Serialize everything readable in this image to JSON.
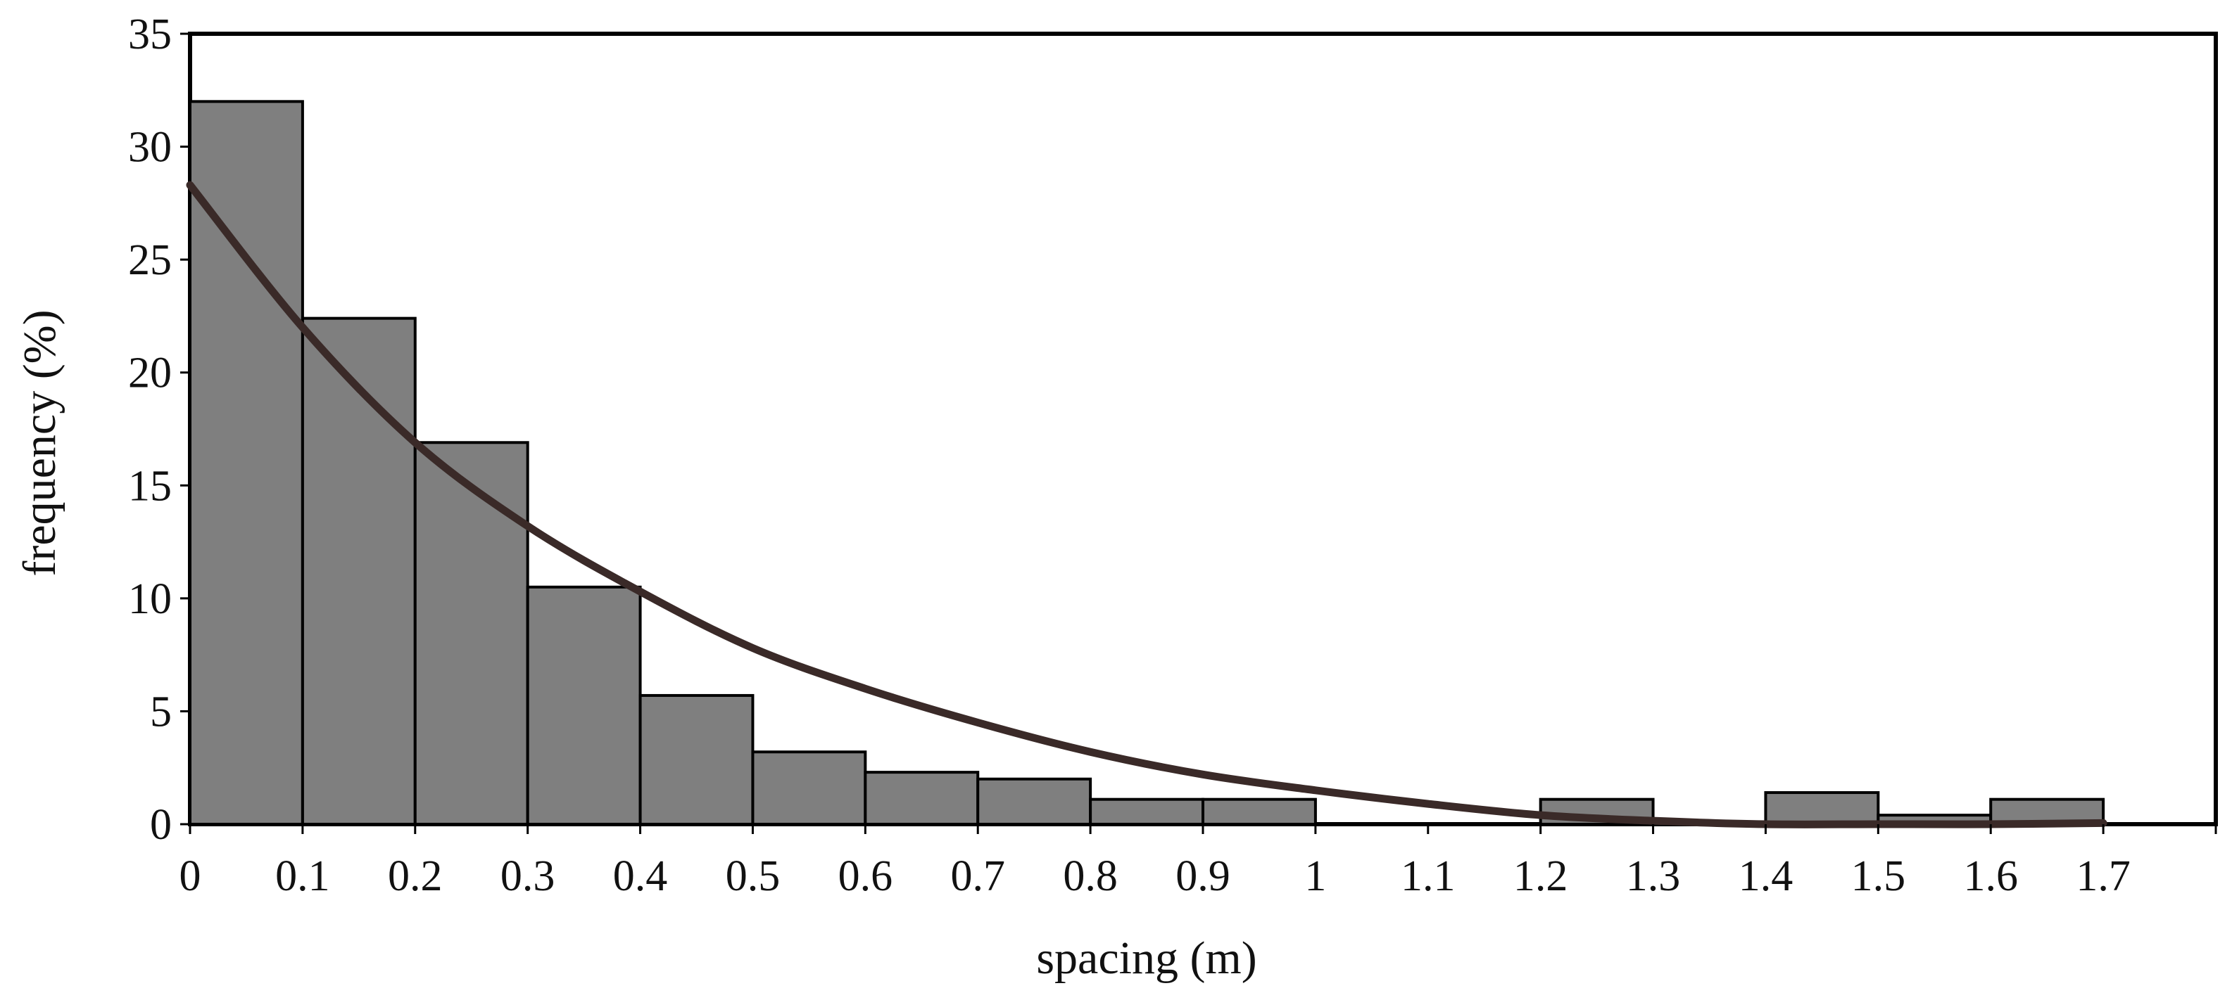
{
  "chart_data": {
    "type": "bar",
    "title": "",
    "xlabel": "spacing (m)",
    "ylabel": "frequency (%)",
    "ylim": [
      0,
      35
    ],
    "xlim": [
      0,
      1.8
    ],
    "bin_width": 0.1,
    "y_ticks": [
      "0",
      "5",
      "10",
      "15",
      "20",
      "25",
      "30",
      "35"
    ],
    "x_ticks": [
      "0",
      "0.1",
      "0.2",
      "0.3",
      "0.4",
      "0.5",
      "0.6",
      "0.7",
      "0.8",
      "0.9",
      "1",
      "1.1",
      "1.2",
      "1.3",
      "1.4",
      "1.5",
      "1.6",
      "1.7"
    ],
    "bins": [
      {
        "x0": 0.0,
        "x1": 0.1,
        "value": 32.0
      },
      {
        "x0": 0.1,
        "x1": 0.2,
        "value": 22.4
      },
      {
        "x0": 0.2,
        "x1": 0.3,
        "value": 16.9
      },
      {
        "x0": 0.3,
        "x1": 0.4,
        "value": 10.5
      },
      {
        "x0": 0.4,
        "x1": 0.5,
        "value": 5.7
      },
      {
        "x0": 0.5,
        "x1": 0.6,
        "value": 3.2
      },
      {
        "x0": 0.6,
        "x1": 0.7,
        "value": 2.3
      },
      {
        "x0": 0.7,
        "x1": 0.8,
        "value": 2.0
      },
      {
        "x0": 0.8,
        "x1": 0.9,
        "value": 1.1
      },
      {
        "x0": 0.9,
        "x1": 1.0,
        "value": 1.1
      },
      {
        "x0": 1.2,
        "x1": 1.3,
        "value": 1.1
      },
      {
        "x0": 1.4,
        "x1": 1.5,
        "value": 1.4
      },
      {
        "x0": 1.5,
        "x1": 1.6,
        "value": 0.4
      },
      {
        "x0": 1.6,
        "x1": 1.7,
        "value": 1.1
      }
    ],
    "fit_curve": {
      "x": [
        0.0,
        0.1,
        0.2,
        0.3,
        0.4,
        0.5,
        0.6,
        0.7,
        0.8,
        0.9,
        1.0,
        1.1,
        1.2,
        1.3,
        1.4,
        1.5,
        1.6,
        1.7
      ],
      "y": [
        28.3,
        22.0,
        16.9,
        13.2,
        10.3,
        7.8,
        6.0,
        4.5,
        3.2,
        2.2,
        1.5,
        0.9,
        0.4,
        0.15,
        0.0,
        0.0,
        0.0,
        0.05
      ]
    },
    "grid": false,
    "legend": "none",
    "colors": {
      "bar_fill": "#7f7f7f",
      "bar_stroke": "#000000",
      "curve": "#3a2a28",
      "axes": "#000000"
    }
  }
}
